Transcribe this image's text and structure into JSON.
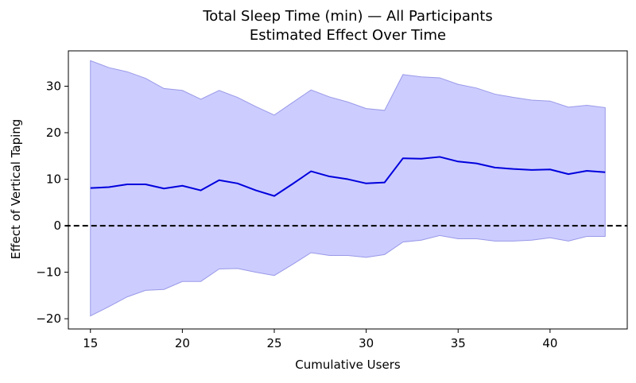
{
  "chart_data": {
    "type": "line",
    "title": "Total Sleep Time (min) — All Participants",
    "subtitle": "Estimated Effect Over Time",
    "xlabel": "Cumulative Users",
    "ylabel": "Effect of Vertical Taping",
    "xlim": [
      13.8,
      44.2
    ],
    "ylim": [
      -22.2,
      37.6
    ],
    "xticks": [
      15,
      20,
      25,
      30,
      35,
      40
    ],
    "yticks": [
      -20,
      -10,
      0,
      10,
      20,
      30
    ],
    "x": [
      15,
      16,
      17,
      18,
      19,
      20,
      21,
      22,
      23,
      24,
      25,
      26,
      27,
      28,
      29,
      30,
      31,
      32,
      33,
      34,
      35,
      36,
      37,
      38,
      39,
      40,
      41,
      42,
      43
    ],
    "series": [
      {
        "values": [
          8.1,
          8.3,
          8.9,
          8.9,
          8.0,
          8.6,
          7.6,
          9.8,
          9.1,
          7.6,
          6.4,
          9.0,
          11.7,
          10.6,
          10.0,
          9.1,
          9.3,
          14.5,
          14.4,
          14.8,
          13.8,
          13.4,
          12.5,
          12.2,
          12.0,
          12.1,
          11.1,
          11.8,
          11.5
        ],
        "lower": [
          -19.4,
          -17.4,
          -15.3,
          -13.9,
          -13.7,
          -12.0,
          -12.0,
          -9.3,
          -9.2,
          -10.0,
          -10.7,
          -8.3,
          -5.8,
          -6.4,
          -6.4,
          -6.8,
          -6.2,
          -3.5,
          -3.1,
          -2.1,
          -2.8,
          -2.8,
          -3.3,
          -3.3,
          -3.1,
          -2.6,
          -3.3,
          -2.3,
          -2.3
        ],
        "upper": [
          35.5,
          34.0,
          33.1,
          31.7,
          29.5,
          29.1,
          27.2,
          29.1,
          27.6,
          25.6,
          23.8,
          26.5,
          29.2,
          27.7,
          26.6,
          25.2,
          24.8,
          32.5,
          32.0,
          31.8,
          30.4,
          29.6,
          28.3,
          27.6,
          27.0,
          26.8,
          25.5,
          25.9,
          25.4
        ],
        "color": "#0000dd",
        "band_color": "#ccccff"
      }
    ],
    "reference_line": {
      "y": 0,
      "style": "dashed",
      "color": "#000000"
    },
    "grid": false,
    "legend": "none"
  }
}
